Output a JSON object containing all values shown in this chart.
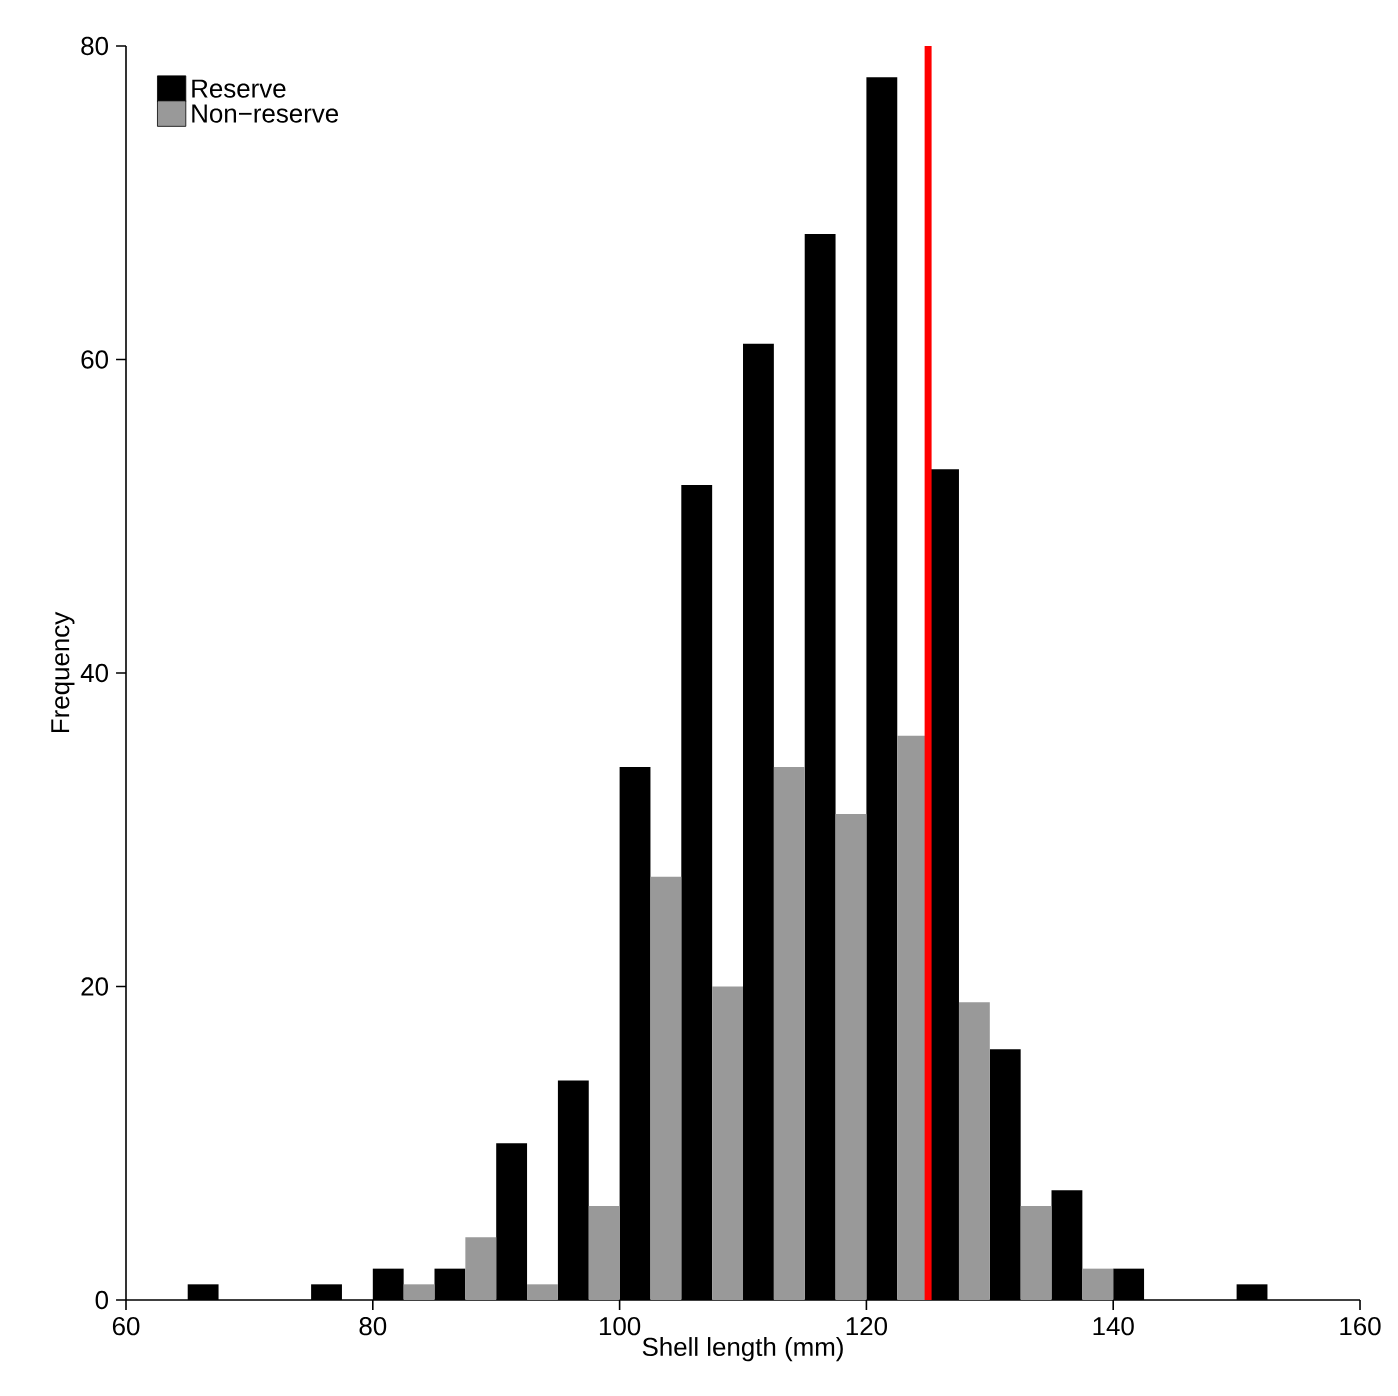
{
  "chart_data": {
    "type": "histogram",
    "xlabel": "Shell length (mm)",
    "ylabel": "Frequency",
    "bins": [
      65,
      70,
      75,
      80,
      85,
      90,
      95,
      100,
      105,
      110,
      115,
      120,
      125,
      130,
      135,
      140,
      145,
      150,
      155
    ],
    "series": [
      {
        "name": "Reserve",
        "color": "#000000",
        "values": [
          1,
          0,
          1,
          2,
          2,
          10,
          14,
          34,
          52,
          61,
          68,
          78,
          53,
          16,
          7,
          2,
          0,
          1
        ]
      },
      {
        "name": "Non−reserve",
        "color": "#999999",
        "values": [
          0,
          0,
          0,
          1,
          4,
          1,
          6,
          27,
          20,
          34,
          31,
          36,
          19,
          6,
          2,
          0,
          0,
          0
        ]
      }
    ],
    "xlim": [
      60,
      160
    ],
    "ylim": [
      0,
      80
    ],
    "xticks": [
      60,
      80,
      100,
      120,
      140,
      160
    ],
    "yticks": [
      0,
      20,
      40,
      60,
      80
    ],
    "ref_lines": [
      {
        "axis": "x",
        "value": 125,
        "color": "#ff0000"
      }
    ],
    "grid": false,
    "legend": "top left"
  }
}
